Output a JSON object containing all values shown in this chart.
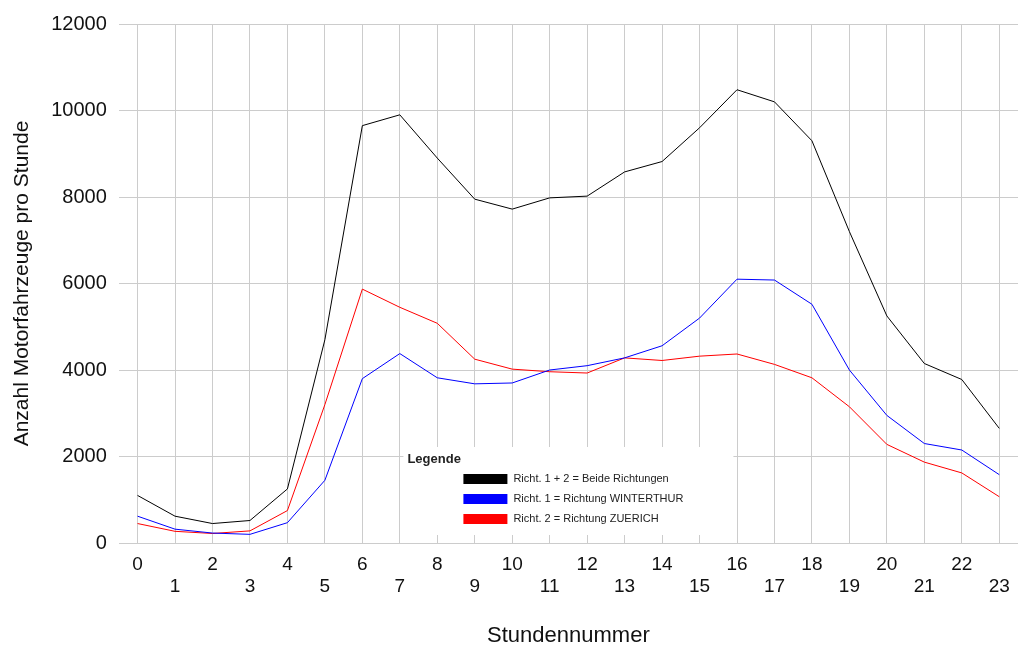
{
  "chart_data": {
    "type": "line",
    "xlabel": "Stundennummer",
    "ylabel": "Anzahl Motorfahrzeuge pro Stunde",
    "legend_title": "Legende",
    "categories": [
      "0",
      "1",
      "2",
      "3",
      "4",
      "5",
      "6",
      "7",
      "8",
      "9",
      "10",
      "11",
      "12",
      "13",
      "14",
      "15",
      "16",
      "17",
      "18",
      "19",
      "20",
      "21",
      "22",
      "23"
    ],
    "series": [
      {
        "name": "Richt. 1 + 2 = Beide Richtungen",
        "color": "#000000",
        "values": [
          1100,
          620,
          450,
          520,
          1250,
          4700,
          9650,
          9900,
          8900,
          7950,
          7720,
          7980,
          8020,
          8580,
          8820,
          9600,
          10480,
          10200,
          9300,
          7200,
          5250,
          4150,
          3780,
          2650
        ]
      },
      {
        "name": "Richt. 1 = Richtung WINTERTHUR",
        "color": "#0000ff",
        "values": [
          620,
          320,
          230,
          200,
          470,
          1450,
          3800,
          4380,
          3820,
          3680,
          3700,
          4000,
          4100,
          4280,
          4560,
          5200,
          6100,
          6080,
          5520,
          4000,
          2950,
          2300,
          2150,
          1580
        ]
      },
      {
        "name": "Richt. 2 = Richtung ZUERICH",
        "color": "#ff0000",
        "values": [
          450,
          270,
          220,
          280,
          750,
          3200,
          5870,
          5450,
          5080,
          4250,
          4020,
          3960,
          3930,
          4280,
          4220,
          4320,
          4370,
          4130,
          3820,
          3150,
          2280,
          1870,
          1620,
          1070
        ]
      }
    ],
    "ylim": [
      0,
      12000
    ],
    "yticks": [
      0,
      2000,
      4000,
      6000,
      8000,
      10000,
      12000
    ],
    "grid": true,
    "legend": "bottom",
    "marker": "none",
    "line_style": "solid"
  }
}
